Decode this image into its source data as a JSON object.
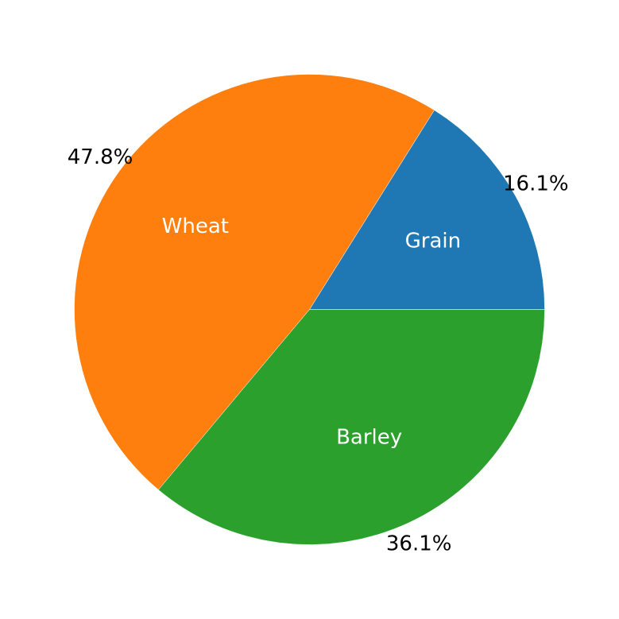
{
  "chart_data": {
    "type": "pie",
    "title": "",
    "slices": [
      {
        "label": "Grain",
        "value": 16.1,
        "percent_label": "16.1%",
        "color": "#1f77b4"
      },
      {
        "label": "Wheat",
        "value": 47.8,
        "percent_label": "47.8%",
        "color": "#ff7f0e"
      },
      {
        "label": "Barley",
        "value": 36.1,
        "percent_label": "36.1%",
        "color": "#2ca02c"
      }
    ],
    "start_angle_deg": 0,
    "direction": "counterclockwise",
    "legend": "none"
  }
}
